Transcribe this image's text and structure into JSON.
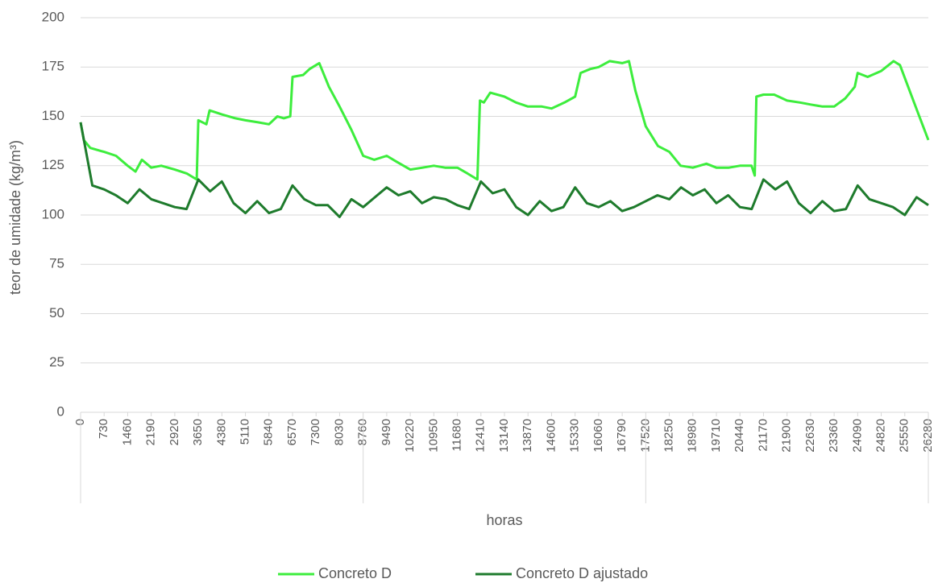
{
  "chart_data": {
    "type": "line",
    "x_label": "horas",
    "y_label": "teor de umidade (kg/m³)",
    "xlim": [
      0,
      26280
    ],
    "ylim": [
      0,
      200
    ],
    "yticks": [
      0,
      25,
      50,
      75,
      100,
      125,
      150,
      175,
      200
    ],
    "xticks": [
      0,
      730,
      1460,
      2190,
      2920,
      3650,
      4380,
      5110,
      5840,
      6570,
      7300,
      8030,
      8760,
      9490,
      10220,
      10950,
      11680,
      12410,
      13140,
      13870,
      14600,
      15330,
      16060,
      16790,
      17520,
      18250,
      18980,
      19710,
      20440,
      21170,
      21900,
      22630,
      23360,
      24090,
      24820,
      25550,
      26280
    ],
    "grid": true,
    "legend": "bottom",
    "series": [
      {
        "name": "Concreto D",
        "color": "#3ded3d",
        "x": [
          0,
          100,
          300,
          730,
          1100,
          1460,
          1700,
          1900,
          2190,
          2500,
          2920,
          3300,
          3600,
          3650,
          3900,
          4000,
          4380,
          4800,
          5110,
          5500,
          5840,
          6100,
          6300,
          6500,
          6570,
          6900,
          7100,
          7300,
          7400,
          7700,
          8030,
          8400,
          8760,
          9100,
          9490,
          9800,
          10220,
          10600,
          10950,
          11300,
          11680,
          12000,
          12300,
          12380,
          12500,
          12700,
          13140,
          13500,
          13870,
          14300,
          14600,
          15000,
          15330,
          15500,
          15800,
          16060,
          16400,
          16790,
          17000,
          17200,
          17520,
          17900,
          18250,
          18600,
          18980,
          19400,
          19710,
          20100,
          20440,
          20800,
          20900,
          20950,
          21170,
          21500,
          21900,
          22300,
          22630,
          23000,
          23360,
          23700,
          24000,
          24090,
          24400,
          24820,
          25200,
          25400,
          25700,
          26000,
          26280
        ],
        "values": [
          147,
          138,
          134,
          132,
          130,
          125,
          122,
          128,
          124,
          125,
          123,
          121,
          118,
          148,
          146,
          153,
          151,
          149,
          148,
          147,
          146,
          150,
          149,
          150,
          170,
          171,
          174,
          176,
          177,
          165,
          155,
          143,
          130,
          128,
          130,
          127,
          123,
          124,
          125,
          124,
          124,
          121,
          118,
          158,
          157,
          162,
          160,
          157,
          155,
          155,
          154,
          157,
          160,
          172,
          174,
          175,
          178,
          177,
          178,
          163,
          145,
          135,
          132,
          125,
          124,
          126,
          124,
          124,
          125,
          125,
          120,
          160,
          161,
          161,
          158,
          157,
          156,
          155,
          155,
          159,
          165,
          172,
          170,
          173,
          178,
          176,
          163,
          150,
          138
        ]
      },
      {
        "name": "Concreto D ajustado",
        "color": "#1e7b2c",
        "x": [
          0,
          365,
          730,
          1095,
          1460,
          1825,
          2190,
          2555,
          2920,
          3285,
          3650,
          4015,
          4380,
          4745,
          5110,
          5475,
          5840,
          6205,
          6570,
          6935,
          7300,
          7665,
          8030,
          8395,
          8760,
          9125,
          9490,
          9855,
          10220,
          10585,
          10950,
          11315,
          11680,
          12045,
          12410,
          12775,
          13140,
          13505,
          13870,
          14235,
          14600,
          14965,
          15330,
          15695,
          16060,
          16425,
          16790,
          17155,
          17520,
          17885,
          18250,
          18615,
          18980,
          19345,
          19710,
          20075,
          20440,
          20805,
          21170,
          21535,
          21900,
          22265,
          22630,
          22995,
          23360,
          23725,
          24090,
          24455,
          24820,
          25185,
          25550,
          25915,
          26280
        ],
        "values": [
          147,
          115,
          113,
          110,
          106,
          113,
          108,
          106,
          104,
          103,
          118,
          112,
          117,
          106,
          101,
          107,
          101,
          103,
          115,
          108,
          105,
          105,
          99,
          108,
          104,
          109,
          114,
          110,
          112,
          106,
          109,
          108,
          105,
          103,
          117,
          111,
          113,
          104,
          100,
          107,
          102,
          104,
          114,
          106,
          104,
          107,
          102,
          104,
          107,
          110,
          108,
          114,
          110,
          113,
          106,
          110,
          104,
          103,
          118,
          113,
          117,
          106,
          101,
          107,
          102,
          103,
          115,
          108,
          106,
          104,
          100,
          109,
          105
        ]
      }
    ]
  }
}
